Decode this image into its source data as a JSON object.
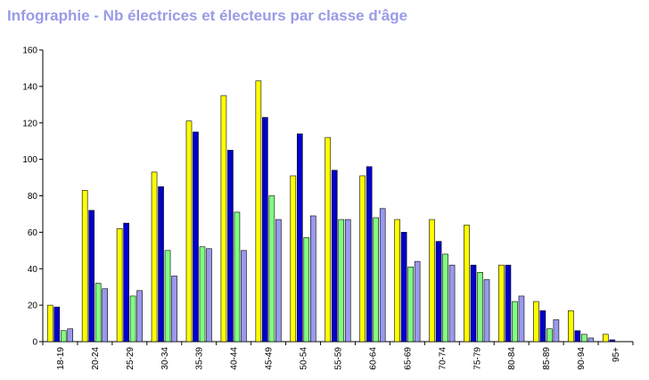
{
  "title": "Infographie - Nb électrices et électeurs par classe d'âge",
  "chart_data": {
    "type": "bar",
    "title": "Infographie - Nb électrices et électeurs par classe d'âge",
    "xlabel": "",
    "ylabel": "",
    "ylim": [
      0,
      160
    ],
    "yticks": [
      0,
      20,
      40,
      60,
      80,
      100,
      120,
      140,
      160
    ],
    "grid": false,
    "legend": "none",
    "categories": [
      "18-19",
      "20-24",
      "25-29",
      "30-34",
      "35-39",
      "40-44",
      "45-49",
      "50-54",
      "55-59",
      "60-64",
      "65-69",
      "70-74",
      "75-79",
      "80-84",
      "85-89",
      "90-94",
      "95+"
    ],
    "series": [
      {
        "color": "#ffff00",
        "values": [
          20,
          83,
          62,
          93,
          121,
          135,
          143,
          91,
          112,
          91,
          67,
          67,
          64,
          42,
          22,
          17,
          4
        ]
      },
      {
        "color": "#0000cc",
        "values": [
          19,
          72,
          65,
          85,
          115,
          105,
          123,
          114,
          94,
          96,
          60,
          55,
          42,
          42,
          17,
          6,
          1
        ]
      },
      {
        "color": "#80ff80",
        "values": [
          6,
          32,
          25,
          50,
          52,
          71,
          80,
          57,
          67,
          68,
          41,
          48,
          38,
          22,
          7,
          4,
          0
        ]
      },
      {
        "color": "#9999ee",
        "values": [
          7,
          29,
          28,
          36,
          51,
          50,
          67,
          69,
          67,
          73,
          44,
          42,
          34,
          25,
          12,
          2,
          0
        ]
      }
    ]
  }
}
